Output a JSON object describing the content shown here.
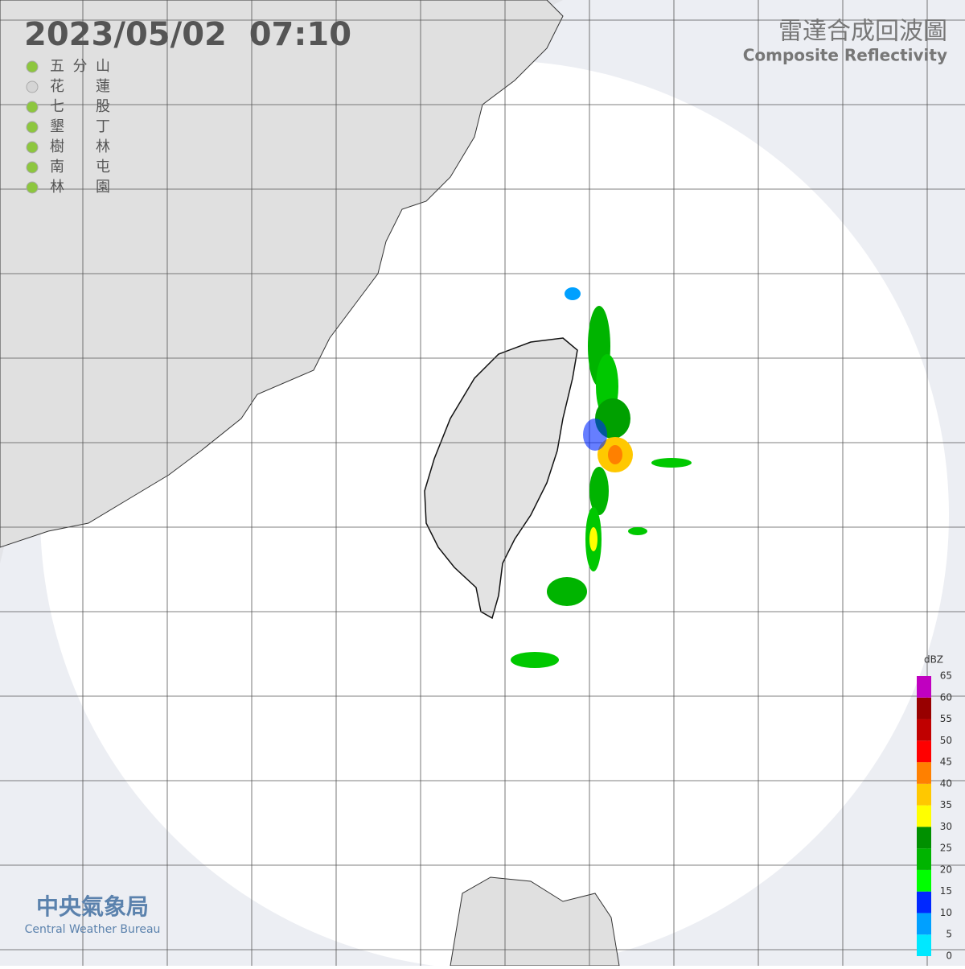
{
  "timestamp": "2023/05/02  07:10",
  "title": {
    "zh": "雷達合成回波圖",
    "en": "Composite Reflectivity"
  },
  "stations": [
    {
      "name": "五 分 山",
      "color": "#8dc63f"
    },
    {
      "name": "花 蓮",
      "color": "#d5d5d5"
    },
    {
      "name": "七 股",
      "color": "#8dc63f"
    },
    {
      "name": "墾 丁",
      "color": "#8dc63f"
    },
    {
      "name": "樹 林",
      "color": "#8dc63f"
    },
    {
      "name": "南 屯",
      "color": "#8dc63f"
    },
    {
      "name": "林 園",
      "color": "#8dc63f"
    }
  ],
  "legend": {
    "unit": "dBZ",
    "ticks": [
      0,
      5,
      10,
      15,
      20,
      25,
      30,
      35,
      40,
      45,
      50,
      55,
      60,
      65
    ],
    "colors": [
      "#00e8ff",
      "#00a0ff",
      "#0028ff",
      "#00ff00",
      "#00b400",
      "#009000",
      "#ffff00",
      "#ffc800",
      "#ff8000",
      "#ff0000",
      "#c00000",
      "#980000",
      "#c000c0"
    ]
  },
  "logo": {
    "zh": "中央氣象局",
    "en": "Central Weather Bureau"
  }
}
